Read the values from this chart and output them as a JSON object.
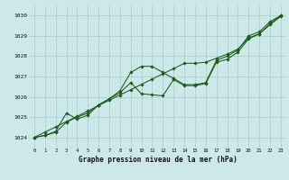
{
  "title": "Graphe pression niveau de la mer (hPa)",
  "bg_color": "#cce8e8",
  "grid_color": "#aacccc",
  "line_color": "#1a5c1a",
  "xlim": [
    -0.5,
    23.5
  ],
  "ylim": [
    1023.5,
    1030.5
  ],
  "yticks": [
    1024,
    1025,
    1026,
    1027,
    1028,
    1029,
    1030
  ],
  "xticks": [
    0,
    1,
    2,
    3,
    4,
    5,
    6,
    7,
    8,
    9,
    10,
    11,
    12,
    13,
    14,
    15,
    16,
    17,
    18,
    19,
    20,
    21,
    22,
    23
  ],
  "series1": [
    1024.0,
    1024.1,
    1024.3,
    1025.2,
    1024.9,
    1025.1,
    1025.6,
    1025.9,
    1026.3,
    1027.2,
    1027.5,
    1027.5,
    1027.2,
    1026.9,
    1026.6,
    1026.6,
    1026.7,
    1027.8,
    1028.0,
    1028.3,
    1029.0,
    1029.2,
    1029.7,
    1030.0
  ],
  "series2": [
    1024.0,
    1024.1,
    1024.25,
    1024.75,
    1025.0,
    1025.2,
    1025.6,
    1025.9,
    1026.2,
    1026.7,
    1026.15,
    1026.1,
    1026.05,
    1026.85,
    1026.55,
    1026.55,
    1026.65,
    1027.7,
    1027.85,
    1028.2,
    1028.85,
    1029.1,
    1029.55,
    1029.95
  ],
  "series3": [
    1024.0,
    1024.26,
    1024.52,
    1024.78,
    1025.04,
    1025.3,
    1025.57,
    1025.83,
    1026.09,
    1026.35,
    1026.61,
    1026.87,
    1027.13,
    1027.39,
    1027.65,
    1027.65,
    1027.7,
    1027.9,
    1028.1,
    1028.35,
    1028.9,
    1029.1,
    1029.6,
    1030.0
  ]
}
